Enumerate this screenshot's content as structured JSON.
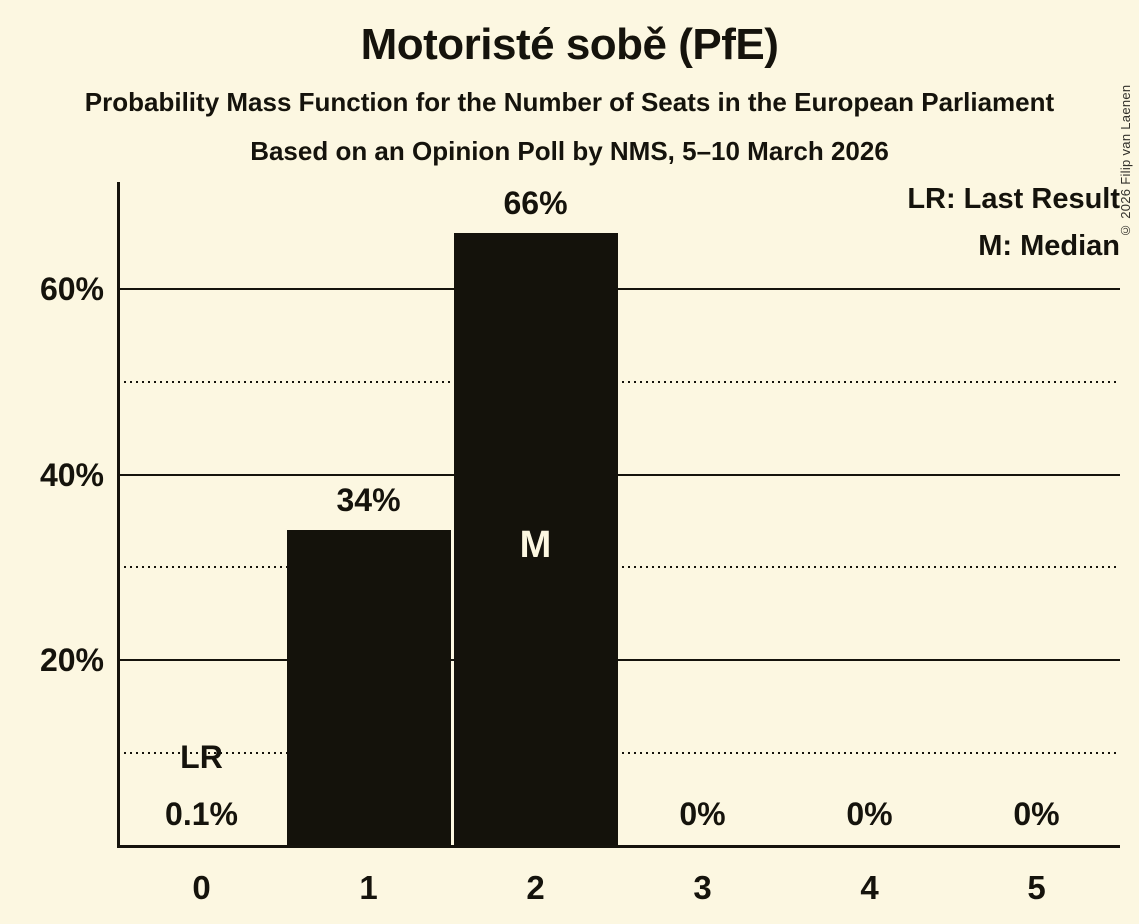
{
  "chart_data": {
    "type": "bar",
    "title": "Motoristé sobě (PfE)",
    "subtitle": "Probability Mass Function for the Number of Seats in the European Parliament",
    "poll_line": "Based on an Opinion Poll by NMS, 5–10 March 2026",
    "copyright": "© 2026 Filip van Laenen",
    "categories": [
      "0",
      "1",
      "2",
      "3",
      "4",
      "5"
    ],
    "values": [
      0.1,
      34,
      66,
      0,
      0,
      0
    ],
    "value_labels": [
      "0.1%",
      "34%",
      "66%",
      "0%",
      "0%",
      "0%"
    ],
    "xlabel": "",
    "ylabel": "",
    "ylim": [
      0,
      71.5
    ],
    "grid": true,
    "yticks": [
      {
        "value": 10,
        "style": "dotted",
        "label": ""
      },
      {
        "value": 20,
        "style": "solid",
        "label": "20%"
      },
      {
        "value": 30,
        "style": "dotted",
        "label": ""
      },
      {
        "value": 40,
        "style": "solid",
        "label": "40%"
      },
      {
        "value": 50,
        "style": "dotted",
        "label": ""
      },
      {
        "value": 60,
        "style": "solid",
        "label": "60%"
      }
    ],
    "legend_position": "top-right",
    "legend": [
      "LR: Last Result",
      "M: Median"
    ],
    "annotations": {
      "last_result": {
        "label": "LR",
        "category": "0",
        "at_percent": 10
      },
      "median": {
        "label": "M",
        "category": "2"
      }
    },
    "colors": {
      "background": "#FCF7E1",
      "ink": "#15130C",
      "bar": "#14120B",
      "median_label": "#FCF7E1"
    }
  }
}
